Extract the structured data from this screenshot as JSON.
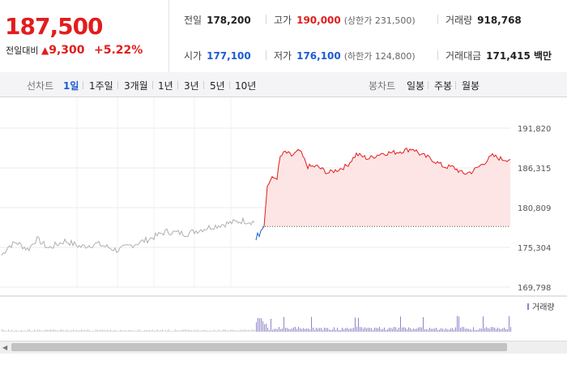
{
  "header": {
    "price": "187,500",
    "prev_label": "전일대비",
    "change_symbol": "▲",
    "change": "9,300",
    "change_pct": "+5.22%"
  },
  "stats": {
    "prev_close_label": "전일",
    "prev_close": "178,200",
    "high_label": "고가",
    "high": "190,000",
    "upper_limit": "(상한가 231,500)",
    "volume_label": "거래량",
    "volume": "918,768",
    "open_label": "시가",
    "open": "177,100",
    "low_label": "저가",
    "low": "176,100",
    "lower_limit": "(하한가 124,800)",
    "amount_label": "거래대금",
    "amount": "171,415 백만"
  },
  "tabs": {
    "line_chart_label": "선차트",
    "periods": [
      "1일",
      "1주일",
      "3개월",
      "1년",
      "3년",
      "5년",
      "10년"
    ],
    "selected_period": "1일",
    "candle_label": "봉차트",
    "candles": [
      "일봉",
      "주봉",
      "월봉"
    ]
  },
  "chart_data": {
    "type": "line",
    "y_ticks": [
      "191,820",
      "186,315",
      "180,809",
      "175,304",
      "169,798"
    ],
    "ylim": [
      169798,
      191820
    ],
    "reference_price": 178200,
    "volume_label": "거래량",
    "colors": {
      "up": "#e31c1c",
      "down": "#1f5bd1",
      "prev_day": "#b0b0b0",
      "fill": "#fde5e5",
      "volume": "#8e84c8"
    }
  }
}
